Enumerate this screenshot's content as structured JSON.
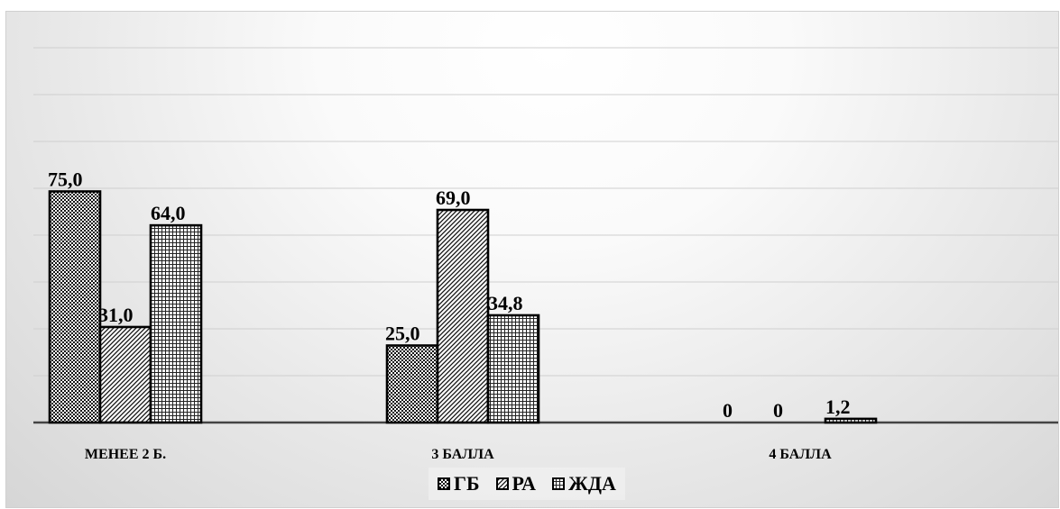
{
  "chart_data": {
    "type": "bar",
    "categories": [
      "МЕНЕЕ 2 Б.",
      "3 БАЛЛА",
      "4 БАЛЛА"
    ],
    "series": [
      {
        "name": "ГБ",
        "values": [
          75.0,
          25.0,
          0
        ],
        "labels": [
          "75,0",
          "25,0",
          "0"
        ]
      },
      {
        "name": "РА",
        "values": [
          31.0,
          69.0,
          0
        ],
        "labels": [
          "31,0",
          "69,0",
          "0"
        ]
      },
      {
        "name": "ЖДА",
        "values": [
          64.0,
          34.8,
          1.2
        ],
        "labels": [
          "64,0",
          "34,8",
          "1,2"
        ]
      }
    ],
    "title": "",
    "xlabel": "",
    "ylabel": "",
    "grid": true,
    "legend_position": "bottom"
  }
}
